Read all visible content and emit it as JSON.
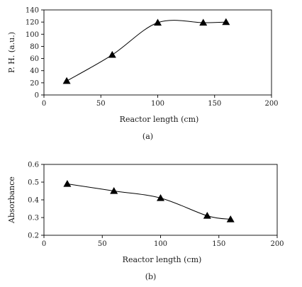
{
  "chart_data": [
    {
      "type": "line",
      "xlabel": "Reactor length (cm)",
      "ylabel": "P. H. (a.u.)",
      "caption": "(a)",
      "xlim": [
        0,
        200
      ],
      "ylim": [
        0,
        140
      ],
      "xticks": [
        0,
        50,
        100,
        150,
        200
      ],
      "yticks": [
        0,
        20,
        40,
        60,
        80,
        100,
        120,
        140
      ],
      "grid": false,
      "marker": "triangle",
      "x": [
        20,
        60,
        100,
        140,
        160
      ],
      "y": [
        23,
        66,
        119,
        119,
        120
      ]
    },
    {
      "type": "line",
      "xlabel": "Reactor length (cm)",
      "ylabel": "Absorbance",
      "caption": "(b)",
      "xlim": [
        0,
        200
      ],
      "ylim": [
        0.2,
        0.6
      ],
      "xticks": [
        0,
        50,
        100,
        150,
        200
      ],
      "yticks": [
        0.2,
        0.3,
        0.4,
        0.5,
        0.6
      ],
      "grid": false,
      "marker": "triangle",
      "x": [
        20,
        60,
        100,
        140,
        160
      ],
      "y": [
        0.49,
        0.45,
        0.41,
        0.31,
        0.29
      ]
    }
  ]
}
